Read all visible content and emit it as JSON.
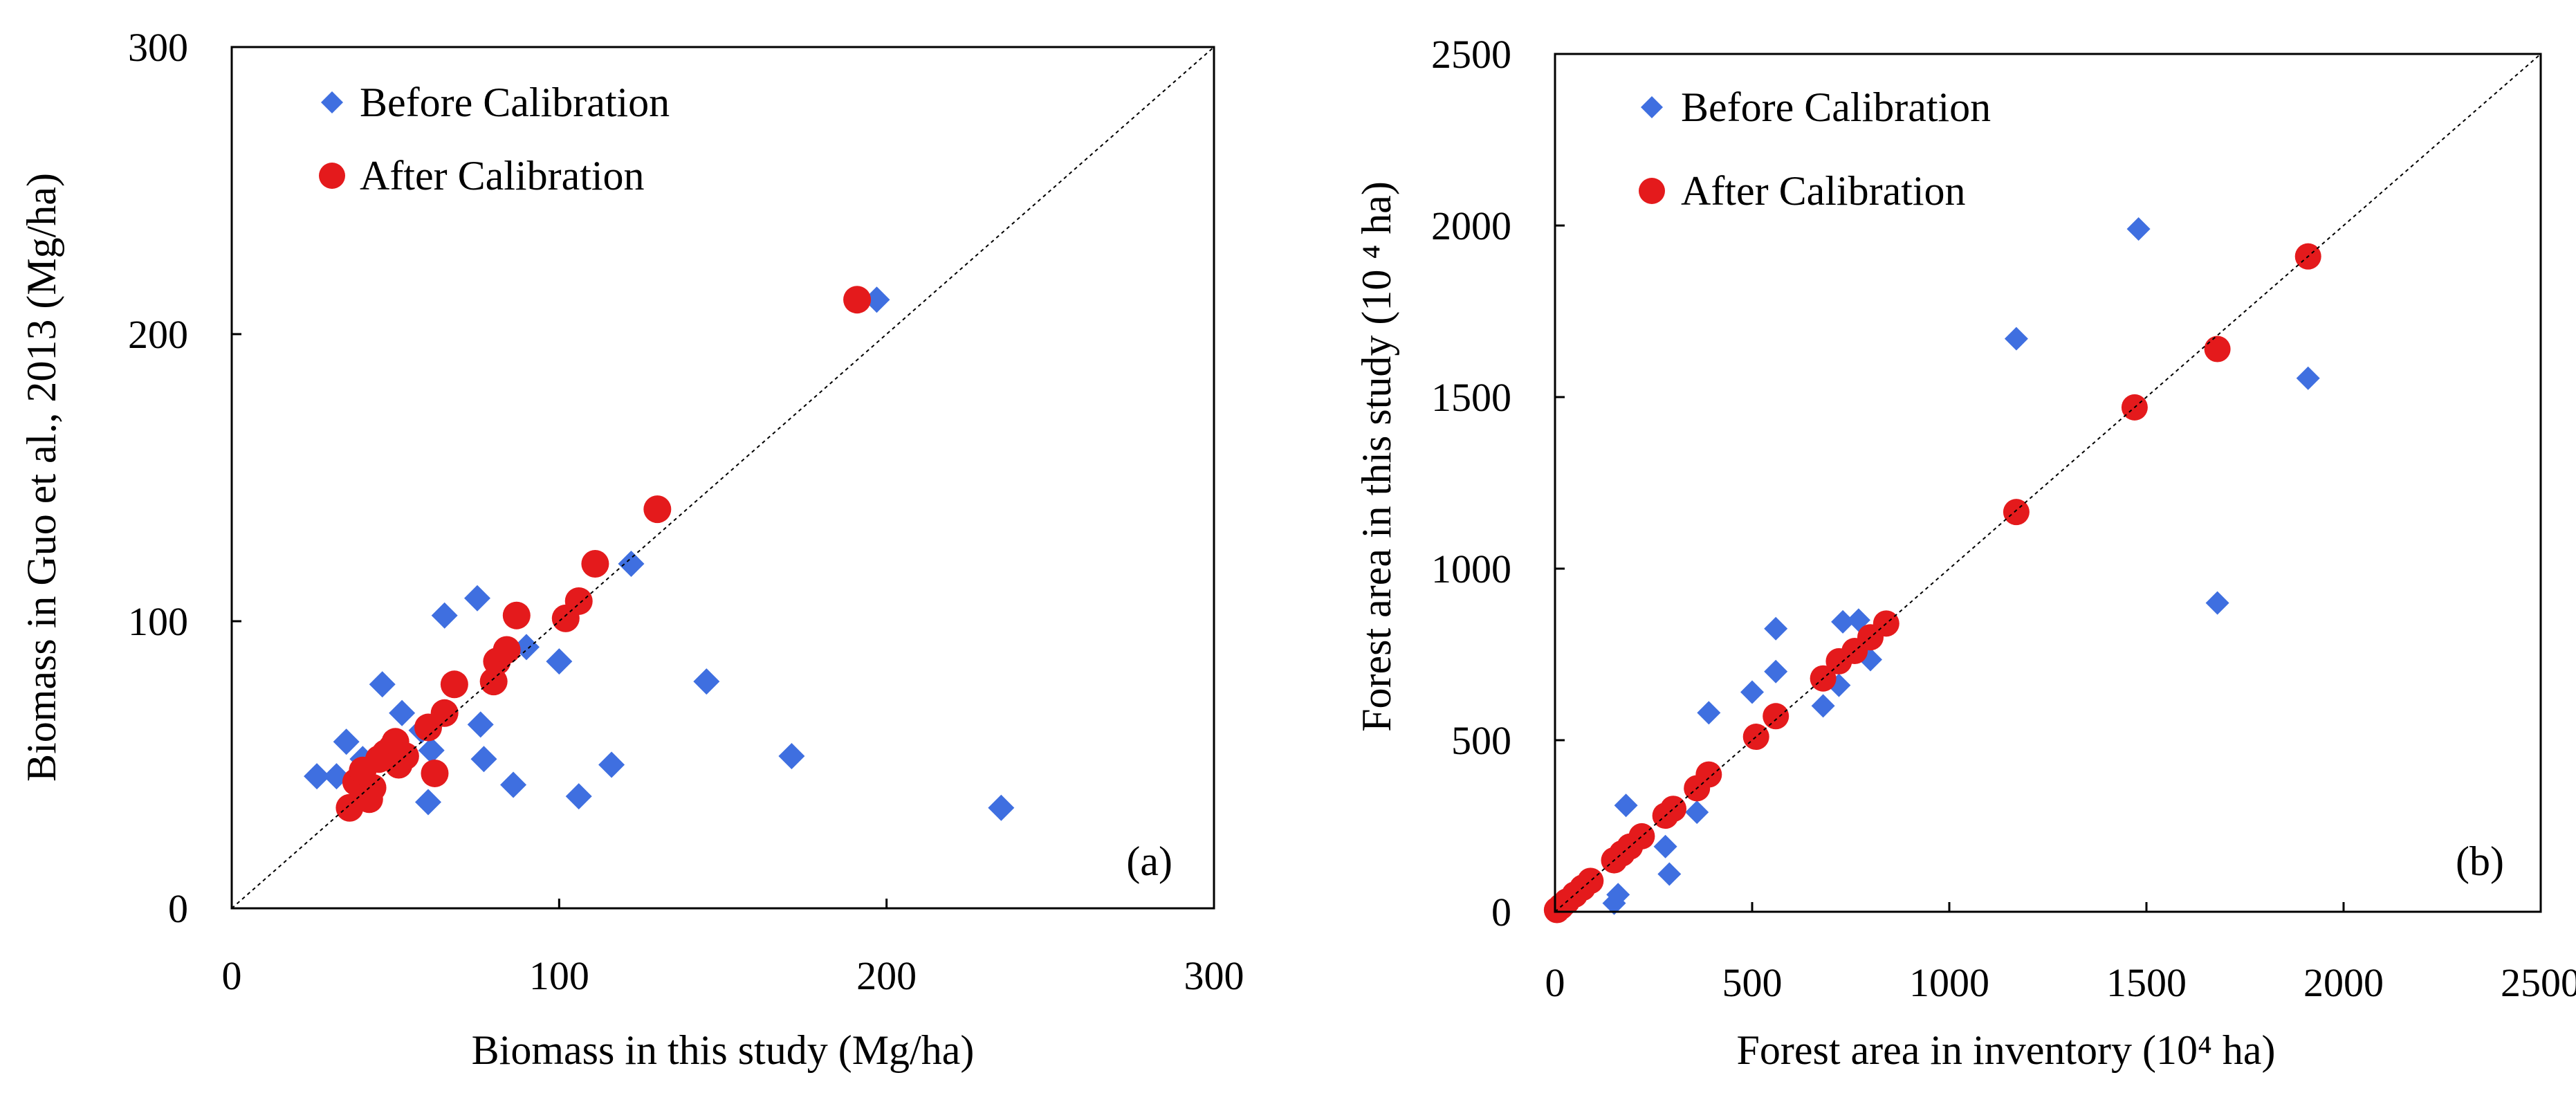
{
  "colors": {
    "before": "#3F6FE0",
    "after": "#E41A1C",
    "axis": "#000000"
  },
  "chart_data": [
    {
      "type": "scatter",
      "panel_label": "(a)",
      "xlabel": "Biomass in this study (Mg/ha)",
      "ylabel": "Biomass in Guo et al., 2013 (Mg/ha)",
      "xlim": [
        0,
        300
      ],
      "ylim": [
        0,
        300
      ],
      "xticks": [
        "0",
        "100",
        "200",
        "300"
      ],
      "yticks": [
        "0",
        "100",
        "200",
        "300"
      ],
      "reference_line": "1:1",
      "legend": [
        "Before Calibration",
        "After Calibration"
      ],
      "series": [
        {
          "name": "Before Calibration",
          "marker": "diamond",
          "points": [
            [
              26,
              46
            ],
            [
              32,
              46
            ],
            [
              35,
              58
            ],
            [
              40,
              52
            ],
            [
              42,
              50
            ],
            [
              46,
              78
            ],
            [
              50,
              58
            ],
            [
              52,
              68
            ],
            [
              58,
              62
            ],
            [
              60,
              37
            ],
            [
              61,
              55
            ],
            [
              65,
              102
            ],
            [
              75,
              108
            ],
            [
              76,
              64
            ],
            [
              77,
              52
            ],
            [
              86,
              43
            ],
            [
              90,
              91
            ],
            [
              100,
              86
            ],
            [
              106,
              39
            ],
            [
              116,
              50
            ],
            [
              122,
              120
            ],
            [
              145,
              79
            ],
            [
              171,
              53
            ],
            [
              197,
              212
            ],
            [
              235,
              35
            ]
          ]
        },
        {
          "name": "After Calibration",
          "marker": "circle",
          "points": [
            [
              36,
              35
            ],
            [
              38,
              44
            ],
            [
              40,
              48
            ],
            [
              42,
              38
            ],
            [
              43,
              42
            ],
            [
              45,
              52
            ],
            [
              47,
              54
            ],
            [
              49,
              56
            ],
            [
              50,
              58
            ],
            [
              51,
              50
            ],
            [
              53,
              53
            ],
            [
              60,
              63
            ],
            [
              62,
              47
            ],
            [
              65,
              68
            ],
            [
              68,
              78
            ],
            [
              80,
              79
            ],
            [
              81,
              86
            ],
            [
              84,
              90
            ],
            [
              87,
              102
            ],
            [
              102,
              101
            ],
            [
              106,
              107
            ],
            [
              111,
              120
            ],
            [
              130,
              139
            ],
            [
              191,
              212
            ]
          ]
        }
      ]
    },
    {
      "type": "scatter",
      "panel_label": "(b)",
      "xlabel": "Forest area in inventory (10⁴ ha)",
      "ylabel": "Forest area in this study (10 ⁴ ha)",
      "xlim": [
        0,
        2500
      ],
      "ylim": [
        0,
        2500
      ],
      "xticks": [
        "0",
        "500",
        "1000",
        "1500",
        "2000",
        "2500"
      ],
      "yticks": [
        "0",
        "500",
        "1000",
        "1500",
        "2000",
        "2500"
      ],
      "reference_line": "1:1",
      "legend": [
        "Before Calibration",
        "After Calibration"
      ],
      "series": [
        {
          "name": "Before Calibration",
          "marker": "diamond",
          "points": [
            [
              20,
              5
            ],
            [
              40,
              25
            ],
            [
              70,
              60
            ],
            [
              150,
              25
            ],
            [
              160,
              50
            ],
            [
              180,
              310
            ],
            [
              280,
              190
            ],
            [
              290,
              110
            ],
            [
              360,
              290
            ],
            [
              390,
              580
            ],
            [
              500,
              640
            ],
            [
              560,
              700
            ],
            [
              560,
              825
            ],
            [
              680,
              600
            ],
            [
              720,
              660
            ],
            [
              730,
              845
            ],
            [
              770,
              850
            ],
            [
              790,
              780
            ],
            [
              800,
              735
            ],
            [
              1170,
              1670
            ],
            [
              1480,
              1990
            ],
            [
              1680,
              900
            ],
            [
              1910,
              1555
            ]
          ]
        },
        {
          "name": "After Calibration",
          "marker": "circle",
          "points": [
            [
              5,
              5
            ],
            [
              15,
              15
            ],
            [
              30,
              30
            ],
            [
              50,
              50
            ],
            [
              70,
              70
            ],
            [
              90,
              90
            ],
            [
              150,
              150
            ],
            [
              170,
              170
            ],
            [
              190,
              190
            ],
            [
              220,
              220
            ],
            [
              280,
              280
            ],
            [
              300,
              300
            ],
            [
              360,
              360
            ],
            [
              390,
              400
            ],
            [
              510,
              510
            ],
            [
              560,
              570
            ],
            [
              680,
              680
            ],
            [
              720,
              730
            ],
            [
              760,
              760
            ],
            [
              800,
              800
            ],
            [
              840,
              840
            ],
            [
              1170,
              1165
            ],
            [
              1470,
              1470
            ],
            [
              1680,
              1640
            ],
            [
              1910,
              1910
            ]
          ]
        }
      ]
    }
  ]
}
